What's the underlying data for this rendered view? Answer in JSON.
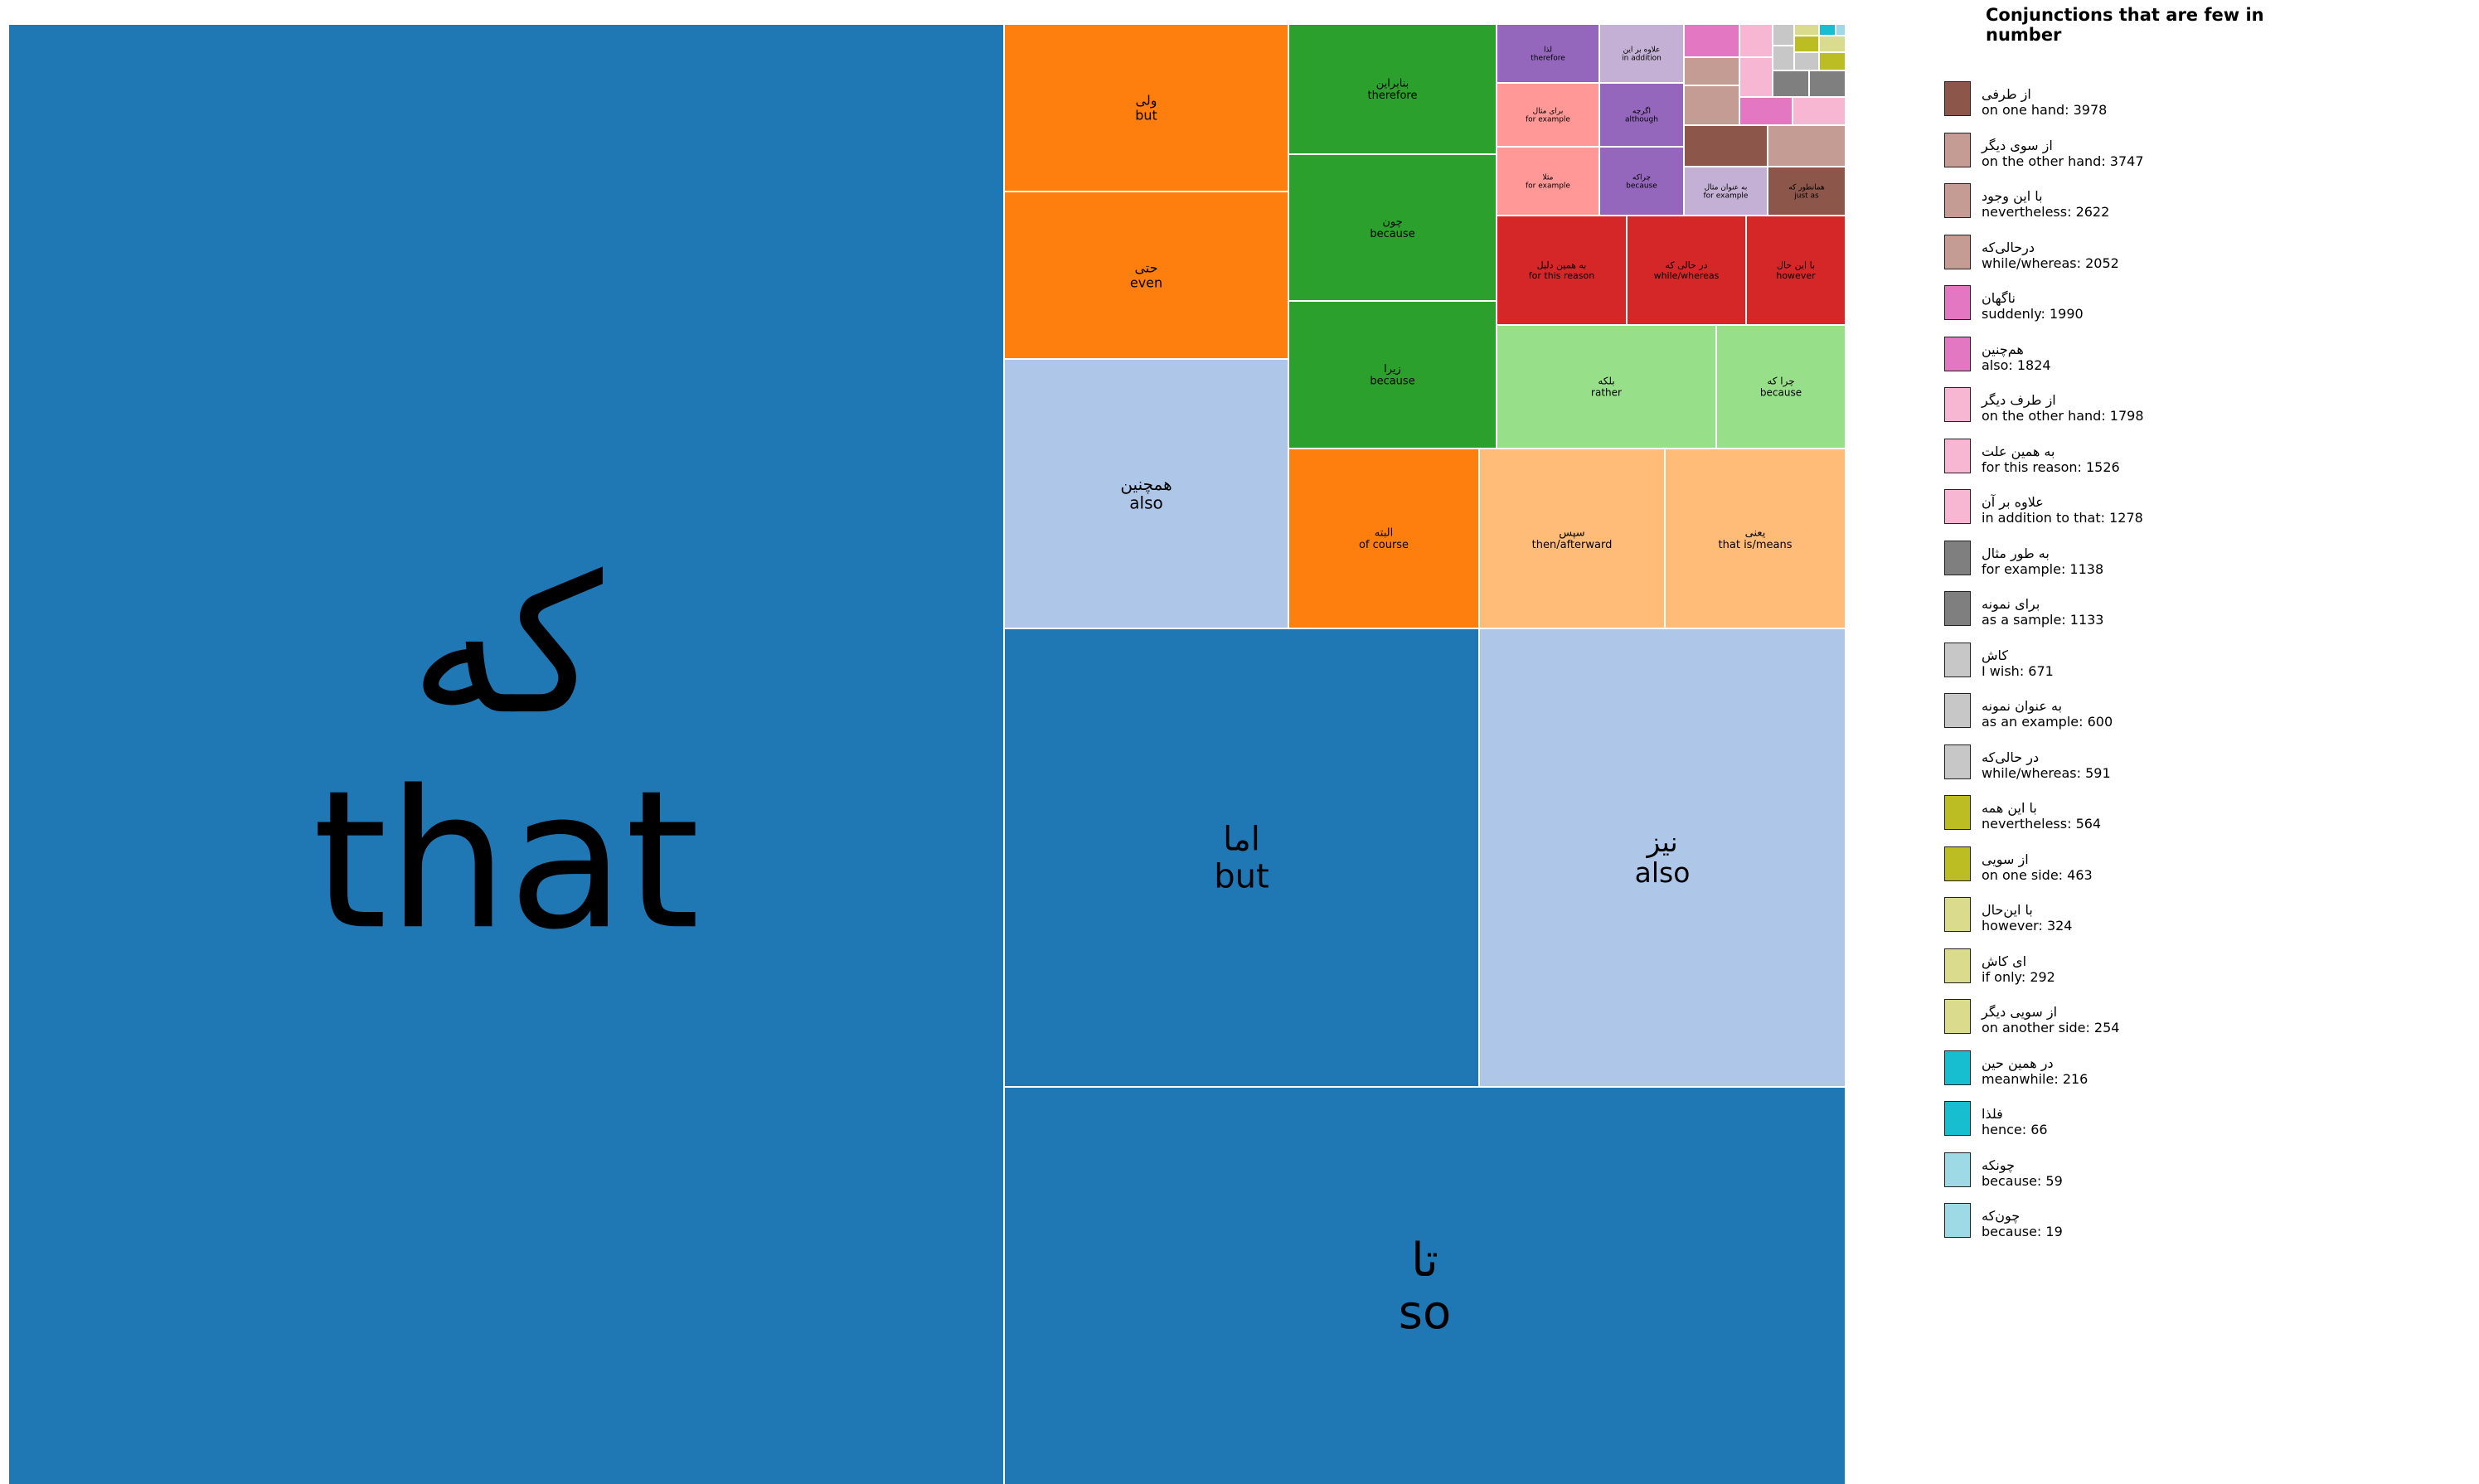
{
  "chart_data": {
    "type": "treemap",
    "legend_title": "Conjunctions that are few in number",
    "colors": {
      "blue": "#1f77b4",
      "light_blue": "#aec7e8",
      "orange": "#ff7f0e",
      "light_orange": "#ffbb78",
      "green": "#2ca02c",
      "light_green": "#98df8a",
      "red": "#d62728",
      "pink_salmon": "#ff9896",
      "purple": "#9467bd",
      "lavender": "#c5b0d5",
      "brown": "#8c564b",
      "rose_brown": "#c49c94",
      "magenta": "#e377c2",
      "light_pink": "#f7b6d2",
      "grey": "#7f7f7f",
      "light_grey": "#c7c7c7",
      "olive": "#bcbd22",
      "light_olive": "#dbdb8d",
      "cyan": "#17becf",
      "light_cyan": "#9edae5"
    },
    "tiles": [
      {
        "fa": "که",
        "en": "that",
        "color": "#1f77b4"
      },
      {
        "fa": "ولی",
        "en": "but",
        "color": "#ff7f0e"
      },
      {
        "fa": "حتی",
        "en": "even",
        "color": "#ff7f0e"
      },
      {
        "fa": "همچنین",
        "en": "also",
        "color": "#aec7e8"
      },
      {
        "fa": "بنابراین",
        "en": "therefore",
        "color": "#2ca02c"
      },
      {
        "fa": "چون",
        "en": "because",
        "color": "#2ca02c"
      },
      {
        "fa": "زیرا",
        "en": "because",
        "color": "#2ca02c"
      },
      {
        "fa": "لذا",
        "en": "therefore",
        "color": "#9467bd"
      },
      {
        "fa": "علاوه بر این",
        "en": "in addition",
        "color": "#c5b0d5"
      },
      {
        "fa": "برای مثال",
        "en": "for example",
        "color": "#ff9896"
      },
      {
        "fa": "اگرچه",
        "en": "although",
        "color": "#9467bd"
      },
      {
        "fa": "مثلا",
        "en": "for example",
        "color": "#ff9896"
      },
      {
        "fa": "چراکه",
        "en": "because",
        "color": "#9467bd"
      },
      {
        "fa": "به عنوان مثال",
        "en": "for example",
        "color": "#c5b0d5"
      },
      {
        "fa": "همانطور که",
        "en": "just as",
        "color": "#8c564b"
      },
      {
        "fa": "به همین دلیل",
        "en": "for this reason",
        "color": "#d62728"
      },
      {
        "fa": "در حالی که",
        "en": "while/whereas",
        "color": "#d62728"
      },
      {
        "fa": "با این حال",
        "en": "however",
        "color": "#d62728"
      },
      {
        "fa": "بلکه",
        "en": "rather",
        "color": "#98df8a"
      },
      {
        "fa": "چرا که",
        "en": "because",
        "color": "#98df8a"
      },
      {
        "fa": "البته",
        "en": "of course",
        "color": "#ff7f0e"
      },
      {
        "fa": "سپس",
        "en": "then/afterward",
        "color": "#ffbb78"
      },
      {
        "fa": "یعنی",
        "en": "that is/means",
        "color": "#ffbb78"
      },
      {
        "fa": "اما",
        "en": "but",
        "color": "#1f77b4"
      },
      {
        "fa": "نیز",
        "en": "also",
        "color": "#aec7e8"
      },
      {
        "fa": "تا",
        "en": "so",
        "color": "#1f77b4"
      },
      {
        "fa": "",
        "en": "",
        "color": "#e377c2"
      },
      {
        "fa": "",
        "en": "",
        "color": "#f7b6d2"
      },
      {
        "fa": "",
        "en": "",
        "color": "#c49c94"
      },
      {
        "fa": "",
        "en": "",
        "color": "#f7b6d2"
      },
      {
        "fa": "",
        "en": "",
        "color": "#c49c94"
      },
      {
        "fa": "",
        "en": "",
        "color": "#e377c2"
      },
      {
        "fa": "",
        "en": "",
        "color": "#f7b6d2"
      },
      {
        "fa": "",
        "en": "",
        "color": "#8c564b"
      },
      {
        "fa": "",
        "en": "",
        "color": "#c49c94"
      },
      {
        "fa": "",
        "en": "",
        "color": "#c7c7c7"
      },
      {
        "fa": "",
        "en": "",
        "color": "#dbdb8d"
      },
      {
        "fa": "",
        "en": "",
        "color": "#17becf"
      },
      {
        "fa": "",
        "en": "",
        "color": "#9edae5"
      },
      {
        "fa": "",
        "en": "",
        "color": "#bcbd22"
      },
      {
        "fa": "",
        "en": "",
        "color": "#dbdb8d"
      },
      {
        "fa": "",
        "en": "",
        "color": "#c7c7c7"
      },
      {
        "fa": "",
        "en": "",
        "color": "#c7c7c7"
      },
      {
        "fa": "",
        "en": "",
        "color": "#bcbd22"
      },
      {
        "fa": "",
        "en": "",
        "color": "#7f7f7f"
      },
      {
        "fa": "",
        "en": "",
        "color": "#7f7f7f"
      }
    ],
    "legend": [
      {
        "fa": "از طرفی",
        "en": "on one hand",
        "value": 3978,
        "color": "#8c564b"
      },
      {
        "fa": "از سوی دیگر",
        "en": "on the other hand",
        "value": 3747,
        "color": "#c49c94"
      },
      {
        "fa": "با این وجود",
        "en": "nevertheless",
        "value": 2622,
        "color": "#c49c94"
      },
      {
        "fa": "درحالی‌که",
        "en": "while/whereas",
        "value": 2052,
        "color": "#c49c94"
      },
      {
        "fa": "ناگهان",
        "en": "suddenly",
        "value": 1990,
        "color": "#e377c2"
      },
      {
        "fa": "هم‌چنین",
        "en": "also",
        "value": 1824,
        "color": "#e377c2"
      },
      {
        "fa": "از طرف دیگر",
        "en": "on the other hand",
        "value": 1798,
        "color": "#f7b6d2"
      },
      {
        "fa": "به همین علت",
        "en": "for this reason",
        "value": 1526,
        "color": "#f7b6d2"
      },
      {
        "fa": "علاوه بر آن",
        "en": "in addition to that",
        "value": 1278,
        "color": "#f7b6d2"
      },
      {
        "fa": "به طور مثال",
        "en": "for example",
        "value": 1138,
        "color": "#7f7f7f"
      },
      {
        "fa": "برای نمونه",
        "en": "as a sample",
        "value": 1133,
        "color": "#7f7f7f"
      },
      {
        "fa": "کاش",
        "en": "I wish",
        "value": 671,
        "color": "#c7c7c7"
      },
      {
        "fa": "به عنوان نمونه",
        "en": "as an example",
        "value": 600,
        "color": "#c7c7c7"
      },
      {
        "fa": "در حالی‌که",
        "en": "while/whereas",
        "value": 591,
        "color": "#c7c7c7"
      },
      {
        "fa": "با این همه",
        "en": "nevertheless",
        "value": 564,
        "color": "#bcbd22"
      },
      {
        "fa": "از سویی",
        "en": "on one side",
        "value": 463,
        "color": "#bcbd22"
      },
      {
        "fa": "با این‌حال",
        "en": "however",
        "value": 324,
        "color": "#dbdb8d"
      },
      {
        "fa": "ای کاش",
        "en": "if only",
        "value": 292,
        "color": "#dbdb8d"
      },
      {
        "fa": "از سویی دیگر",
        "en": "on another side",
        "value": 254,
        "color": "#dbdb8d"
      },
      {
        "fa": "در همین حین",
        "en": "meanwhile",
        "value": 216,
        "color": "#17becf"
      },
      {
        "fa": "فلذا",
        "en": "hence",
        "value": 66,
        "color": "#17becf"
      },
      {
        "fa": "چونکه",
        "en": "because",
        "value": 59,
        "color": "#9edae5"
      },
      {
        "fa": "چون‌که",
        "en": "because",
        "value": 19,
        "color": "#9edae5"
      }
    ]
  }
}
